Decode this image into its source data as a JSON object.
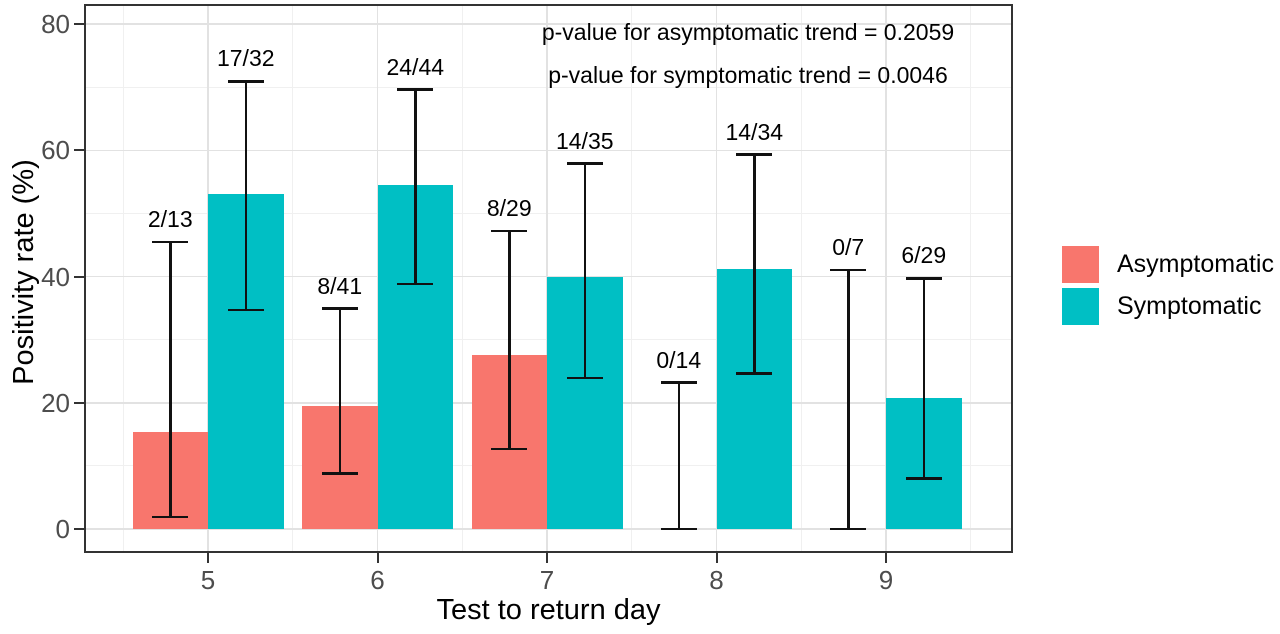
{
  "chart_data": {
    "type": "bar",
    "title": "",
    "xlabel": "Test to return day",
    "ylabel": "Positivity rate (%)",
    "x": [
      5,
      6,
      7,
      8,
      9
    ],
    "yticks": [
      0,
      20,
      40,
      60,
      80
    ],
    "yticks_minor": [
      10,
      30,
      50,
      70
    ],
    "ylim": [
      0,
      80
    ],
    "grid": "major+minor",
    "legend_position": "right",
    "error_bars": "95% CI",
    "series": [
      {
        "name": "Asymptomatic",
        "color": "#F8766D",
        "values": [
          15.4,
          19.5,
          27.6,
          0.0,
          0.0
        ],
        "ci_low": [
          1.9,
          8.8,
          12.7,
          0.0,
          0.0
        ],
        "ci_high": [
          45.5,
          34.9,
          47.2,
          23.2,
          41.0
        ],
        "bar_labels": [
          "2/13",
          "8/41",
          "8/29",
          "0/14",
          "0/7"
        ]
      },
      {
        "name": "Symptomatic",
        "color": "#00BFC4",
        "values": [
          53.1,
          54.5,
          40.0,
          41.2,
          20.7
        ],
        "ci_low": [
          34.7,
          38.8,
          23.9,
          24.6,
          8.0
        ],
        "ci_high": [
          70.9,
          69.6,
          57.9,
          59.3,
          39.7
        ],
        "bar_labels": [
          "17/32",
          "24/44",
          "14/35",
          "14/34",
          "6/29"
        ]
      }
    ],
    "annotations": [
      "p-value for asymptomatic trend = 0.2059",
      "p-value for symptomatic trend = 0.0046"
    ]
  },
  "colors": {
    "panel_border": "#333333",
    "grid_major": "#e2e2e2",
    "grid_minor": "#f0f0f0",
    "tick_label": "#4d4d4d",
    "errorbar": "#111111"
  }
}
